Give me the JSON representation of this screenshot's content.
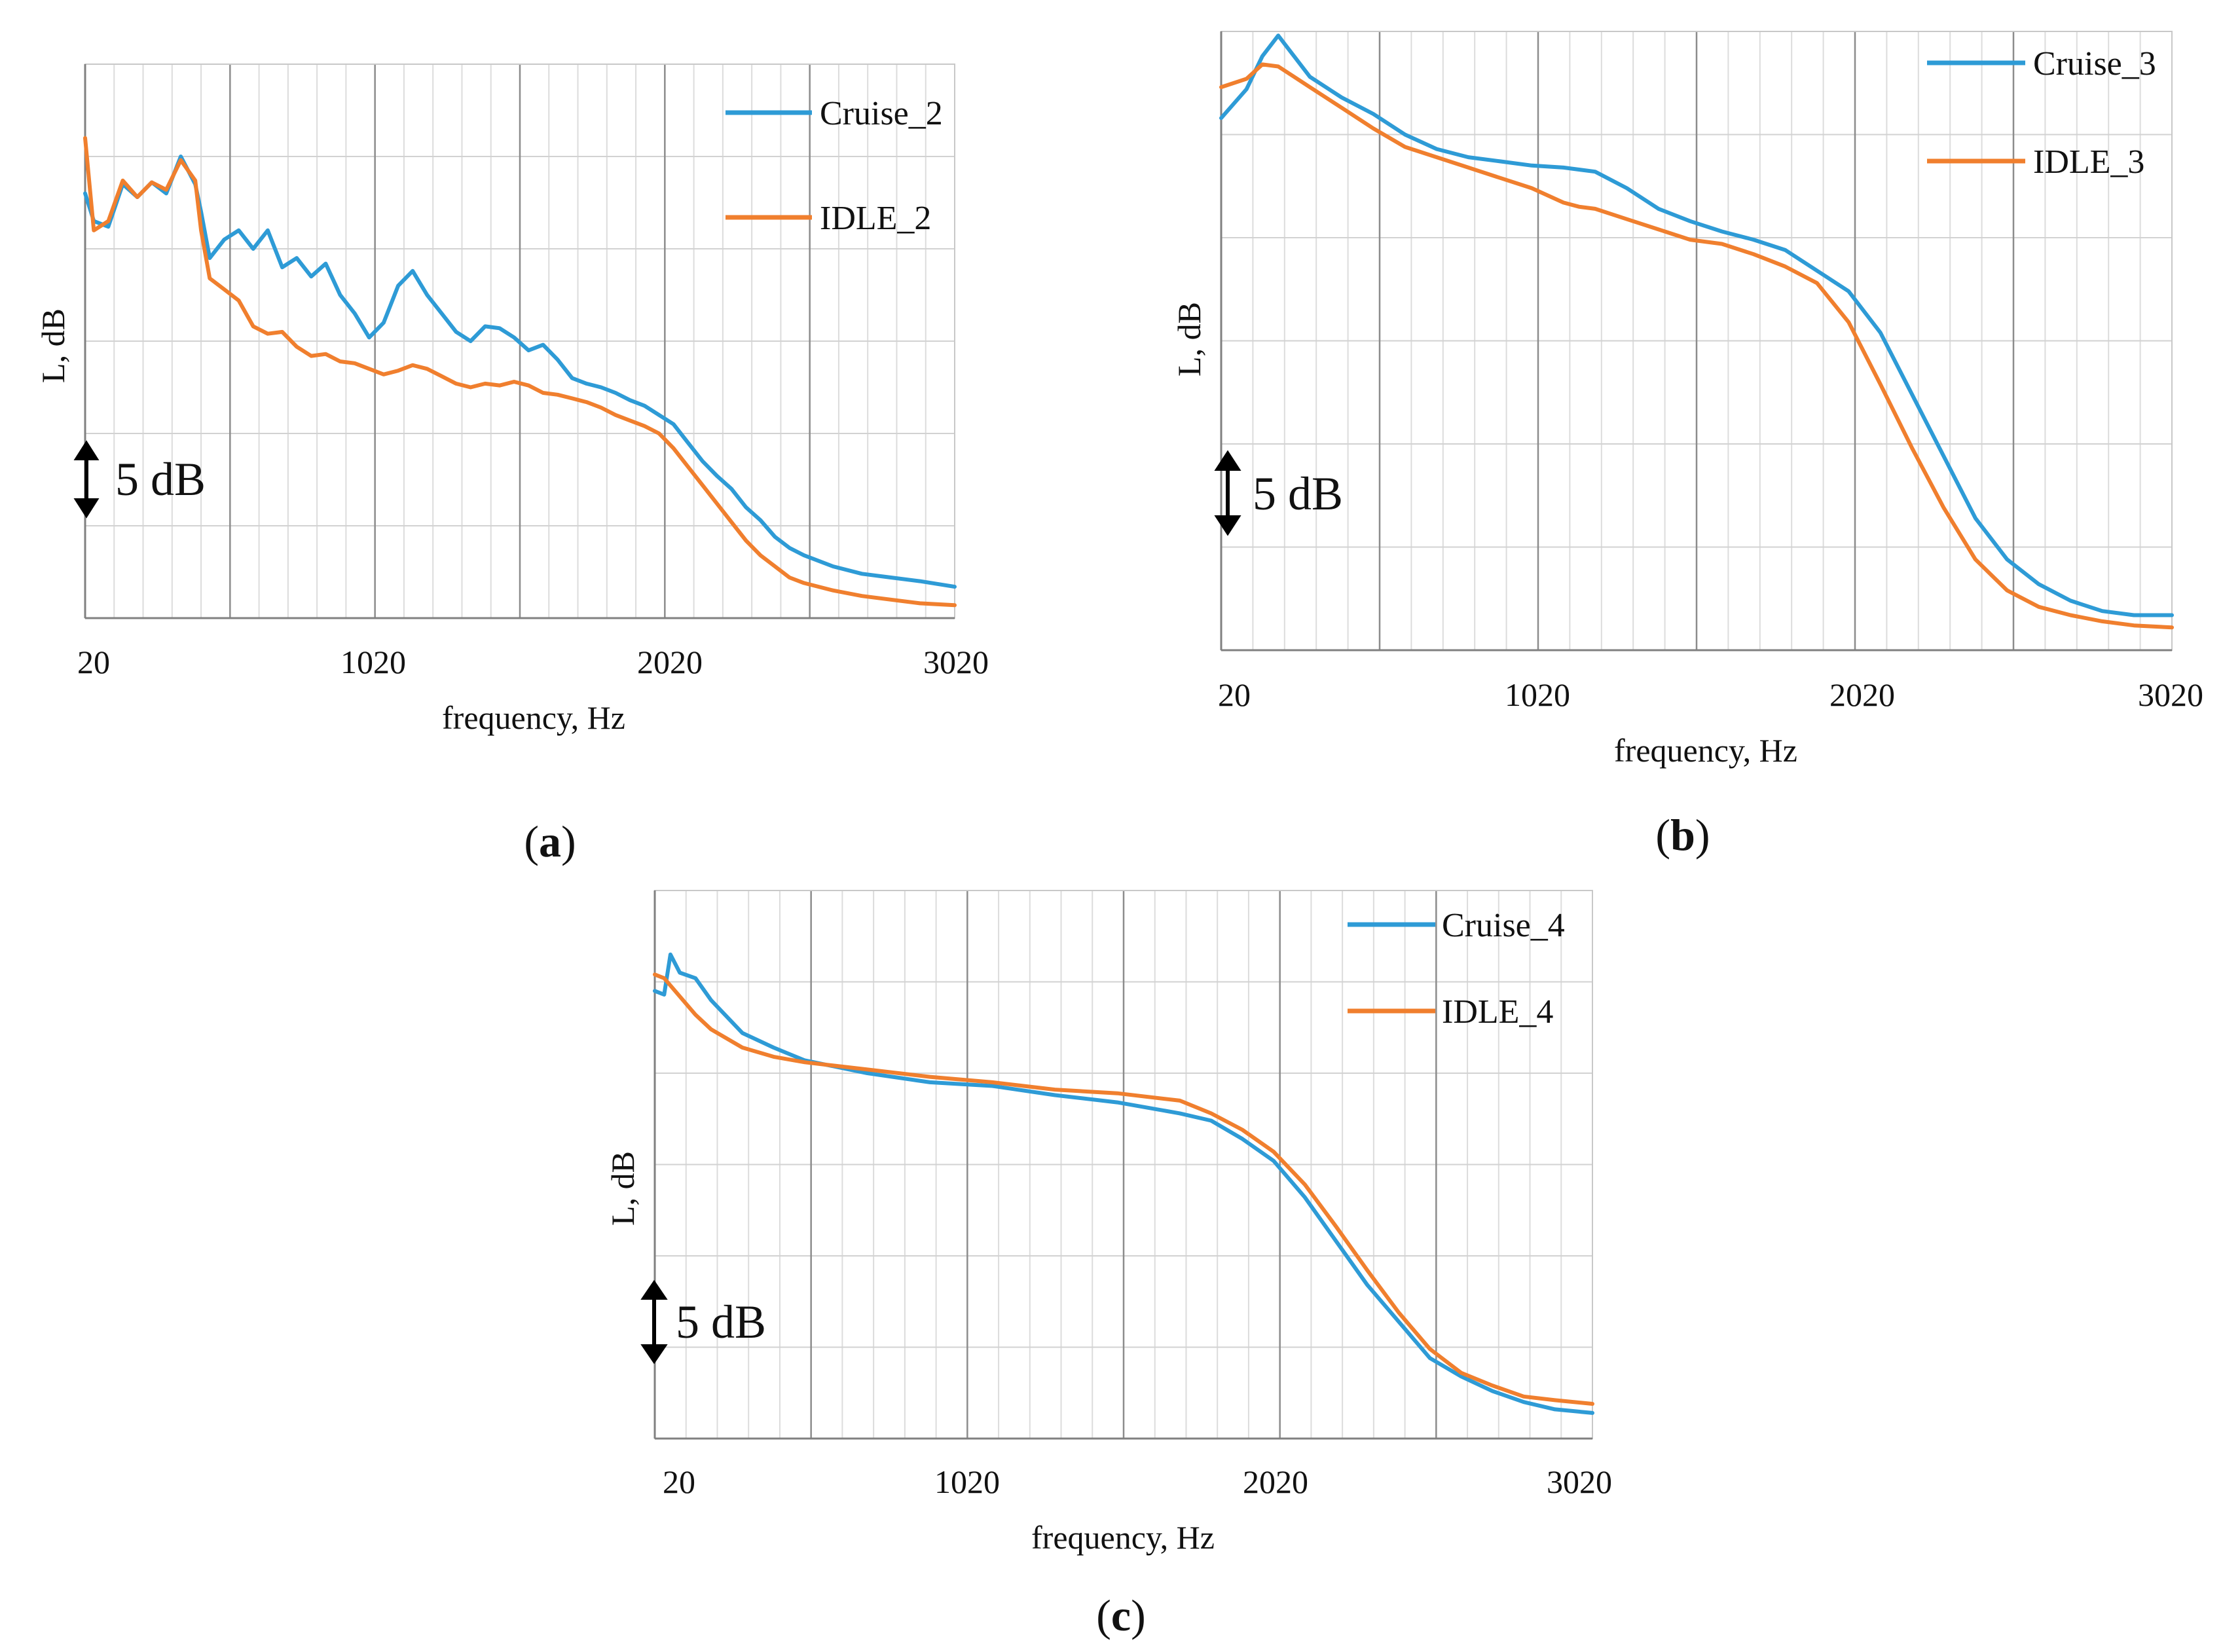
{
  "chart_data": [
    {
      "panel": "a",
      "type": "line",
      "caption": "(a)",
      "xlabel": "frequency, Hz",
      "ylabel": "L, dB",
      "x_ticks": [
        "20",
        "1020",
        "2020",
        "3020"
      ],
      "xlim": [
        20,
        3020
      ],
      "ylim": [
        -30,
        0
      ],
      "y_scale_label": "5 dB",
      "grid": true,
      "legend_position": "top-right",
      "series": [
        {
          "name": "Cruise_2",
          "color": "#2e9bd6",
          "x": [
            20,
            50,
            100,
            150,
            200,
            250,
            300,
            350,
            400,
            420,
            450,
            500,
            550,
            600,
            650,
            700,
            750,
            800,
            850,
            900,
            950,
            1000,
            1050,
            1100,
            1150,
            1200,
            1250,
            1300,
            1350,
            1400,
            1450,
            1500,
            1550,
            1600,
            1650,
            1700,
            1750,
            1800,
            1850,
            1900,
            1950,
            2000,
            2050,
            2100,
            2150,
            2200,
            2250,
            2300,
            2350,
            2400,
            2450,
            2500,
            2600,
            2700,
            2800,
            2900,
            3020
          ],
          "values": [
            -7,
            -8.5,
            -8.8,
            -6.5,
            -7.2,
            -6.4,
            -7,
            -5,
            -6.5,
            -8,
            -10.5,
            -9.5,
            -9,
            -10,
            -9,
            -11,
            -10.5,
            -11.5,
            -10.8,
            -12.5,
            -13.5,
            -14.8,
            -14,
            -12,
            -11.2,
            -12.5,
            -13.5,
            -14.5,
            -15,
            -14.2,
            -14.3,
            -14.8,
            -15.5,
            -15.2,
            -16,
            -17,
            -17.3,
            -17.5,
            -17.8,
            -18.2,
            -18.5,
            -19,
            -19.5,
            -20.5,
            -21.5,
            -22.3,
            -23,
            -24,
            -24.7,
            -25.6,
            -26.2,
            -26.6,
            -27.2,
            -27.6,
            -27.8,
            -28,
            -28.3
          ]
        },
        {
          "name": "IDLE_2",
          "color": "#f07f2e",
          "x": [
            20,
            50,
            100,
            150,
            200,
            250,
            300,
            350,
            400,
            420,
            450,
            500,
            550,
            600,
            650,
            700,
            750,
            800,
            850,
            900,
            950,
            1000,
            1050,
            1100,
            1150,
            1200,
            1250,
            1300,
            1350,
            1400,
            1450,
            1500,
            1550,
            1600,
            1650,
            1700,
            1750,
            1800,
            1850,
            1900,
            1950,
            2000,
            2050,
            2100,
            2150,
            2200,
            2250,
            2300,
            2350,
            2400,
            2450,
            2500,
            2600,
            2700,
            2800,
            2900,
            3020
          ],
          "values": [
            -4,
            -9,
            -8.5,
            -6.3,
            -7.2,
            -6.4,
            -6.8,
            -5.2,
            -6.3,
            -9,
            -11.6,
            -12.2,
            -12.8,
            -14.2,
            -14.6,
            -14.5,
            -15.3,
            -15.8,
            -15.7,
            -16.1,
            -16.2,
            -16.5,
            -16.8,
            -16.6,
            -16.3,
            -16.5,
            -16.9,
            -17.3,
            -17.5,
            -17.3,
            -17.4,
            -17.2,
            -17.4,
            -17.8,
            -17.9,
            -18.1,
            -18.3,
            -18.6,
            -19,
            -19.3,
            -19.6,
            -20,
            -20.8,
            -21.8,
            -22.8,
            -23.8,
            -24.8,
            -25.8,
            -26.6,
            -27.2,
            -27.8,
            -28.1,
            -28.5,
            -28.8,
            -29,
            -29.2,
            -29.3
          ]
        }
      ]
    },
    {
      "panel": "b",
      "type": "line",
      "caption": "(b)",
      "xlabel": "frequency, Hz",
      "ylabel": "L, dB",
      "x_ticks": [
        "20",
        "1020",
        "2020",
        "3020"
      ],
      "xlim": [
        20,
        3020
      ],
      "ylim": [
        -30,
        0
      ],
      "y_scale_label": "5 dB",
      "grid": true,
      "legend_position": "top-right",
      "series": [
        {
          "name": "Cruise_3",
          "color": "#2e9bd6",
          "x": [
            20,
            100,
            150,
            200,
            250,
            300,
            400,
            500,
            600,
            700,
            800,
            900,
            1000,
            1100,
            1200,
            1300,
            1400,
            1500,
            1600,
            1700,
            1800,
            1900,
            2000,
            2100,
            2200,
            2300,
            2400,
            2500,
            2600,
            2700,
            2800,
            2900,
            3020
          ],
          "values": [
            -4.2,
            -2.8,
            -1.2,
            -0.2,
            -1.2,
            -2.2,
            -3.2,
            -4,
            -5,
            -5.7,
            -6.1,
            -6.3,
            -6.5,
            -6.6,
            -6.8,
            -7.6,
            -8.6,
            -9.2,
            -9.7,
            -10.1,
            -10.6,
            -11.6,
            -12.6,
            -14.6,
            -17.6,
            -20.6,
            -23.6,
            -25.6,
            -26.8,
            -27.6,
            -28.1,
            -28.3,
            -28.3
          ]
        },
        {
          "name": "IDLE_3",
          "color": "#f07f2e",
          "x": [
            20,
            100,
            150,
            200,
            250,
            300,
            400,
            500,
            600,
            700,
            800,
            900,
            1000,
            1100,
            1150,
            1200,
            1300,
            1400,
            1500,
            1600,
            1700,
            1800,
            1900,
            2000,
            2100,
            2200,
            2300,
            2400,
            2500,
            2600,
            2700,
            2800,
            2900,
            3020
          ],
          "values": [
            -2.7,
            -2.3,
            -1.6,
            -1.7,
            -2.2,
            -2.7,
            -3.7,
            -4.7,
            -5.6,
            -6.1,
            -6.6,
            -7.1,
            -7.6,
            -8.3,
            -8.5,
            -8.6,
            -9.1,
            -9.6,
            -10.1,
            -10.3,
            -10.8,
            -11.4,
            -12.2,
            -14.1,
            -17.1,
            -20.2,
            -23.1,
            -25.6,
            -27.1,
            -27.9,
            -28.3,
            -28.6,
            -28.8,
            -28.9
          ]
        }
      ]
    },
    {
      "panel": "c",
      "type": "line",
      "caption": "(c)",
      "xlabel": "frequency, Hz",
      "ylabel": "L, dB",
      "x_ticks": [
        "20",
        "1020",
        "2020",
        "3020"
      ],
      "xlim": [
        20,
        3020
      ],
      "ylim": [
        -30,
        0
      ],
      "y_scale_label": "5 dB",
      "grid": true,
      "legend_position": "top-right",
      "series": [
        {
          "name": "Cruise_4",
          "color": "#2e9bd6",
          "x": [
            20,
            50,
            70,
            100,
            150,
            200,
            300,
            400,
            500,
            700,
            900,
            1100,
            1300,
            1500,
            1700,
            1800,
            1900,
            2000,
            2100,
            2200,
            2300,
            2400,
            2500,
            2600,
            2700,
            2800,
            2900,
            3020
          ],
          "values": [
            -5.5,
            -5.7,
            -3.5,
            -4.5,
            -4.8,
            -6,
            -7.8,
            -8.6,
            -9.3,
            -10,
            -10.5,
            -10.7,
            -11.2,
            -11.6,
            -12.2,
            -12.6,
            -13.6,
            -14.8,
            -16.8,
            -19.2,
            -21.6,
            -23.6,
            -25.6,
            -26.6,
            -27.4,
            -28,
            -28.4,
            -28.6
          ]
        },
        {
          "name": "IDLE_4",
          "color": "#f07f2e",
          "x": [
            20,
            50,
            100,
            150,
            200,
            300,
            400,
            500,
            700,
            900,
            1100,
            1300,
            1500,
            1700,
            1800,
            1900,
            2000,
            2100,
            2200,
            2300,
            2400,
            2500,
            2600,
            2700,
            2800,
            2900,
            3020
          ],
          "values": [
            -4.6,
            -4.8,
            -5.8,
            -6.8,
            -7.6,
            -8.6,
            -9.1,
            -9.4,
            -9.8,
            -10.2,
            -10.5,
            -10.9,
            -11.1,
            -11.5,
            -12.2,
            -13.1,
            -14.3,
            -16.1,
            -18.4,
            -20.8,
            -23.1,
            -25.1,
            -26.4,
            -27.1,
            -27.7,
            -27.9,
            -28.1
          ]
        }
      ]
    }
  ]
}
